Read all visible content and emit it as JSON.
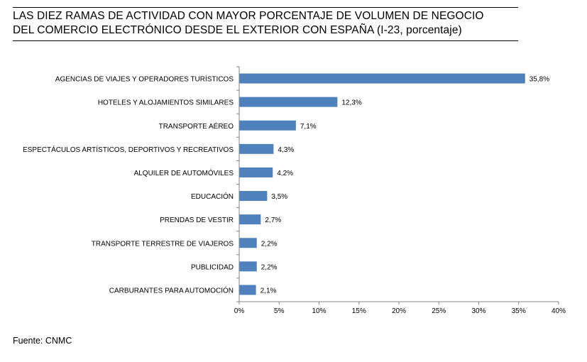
{
  "title": {
    "line1": "LAS DIEZ RAMAS DE ACTIVIDAD CON MAYOR PORCENTAJE DE VOLUMEN DE NEGOCIO",
    "line2": "DEL COMERCIO ELECTRÓNICO DESDE EL EXTERIOR CON ESPAÑA (I-23, porcentaje)"
  },
  "source": "Fuente: CNMC",
  "colors": {
    "bar": "#4F81BD",
    "axis": "#868686"
  },
  "chart_data": {
    "type": "bar",
    "orientation": "horizontal",
    "categories": [
      "AGENCIAS DE VIAJES Y OPERADORES TURÍSTICOS",
      "HOTELES  Y ALOJAMIENTOS SIMILARES",
      "TRANSPORTE AÉREO",
      "ESPECTÁCULOS ARTÍSTICOS, DEPORTIVOS Y RECREATIVOS",
      "ALQUILER DE AUTOMÓVILES",
      "EDUCACIÓN",
      "PRENDAS DE VESTIR",
      "TRANSPORTE TERRESTRE DE VIAJEROS",
      "PUBLICIDAD",
      "CARBURANTES PARA AUTOMOCIÓN"
    ],
    "values": [
      35.8,
      12.3,
      7.1,
      4.3,
      4.2,
      3.5,
      2.7,
      2.2,
      2.2,
      2.1
    ],
    "value_labels": [
      "35,8%",
      "12,3%",
      "7,1%",
      "4,3%",
      "4,2%",
      "3,5%",
      "2,7%",
      "2,2%",
      "2,2%",
      "2,1%"
    ],
    "xlim": [
      0,
      40
    ],
    "xticks": [
      0,
      5,
      10,
      15,
      20,
      25,
      30,
      35,
      40
    ],
    "xtick_labels": [
      "0%",
      "5%",
      "10%",
      "15%",
      "20%",
      "25%",
      "30%",
      "35%",
      "40%"
    ],
    "grid": false,
    "legend": "none"
  }
}
